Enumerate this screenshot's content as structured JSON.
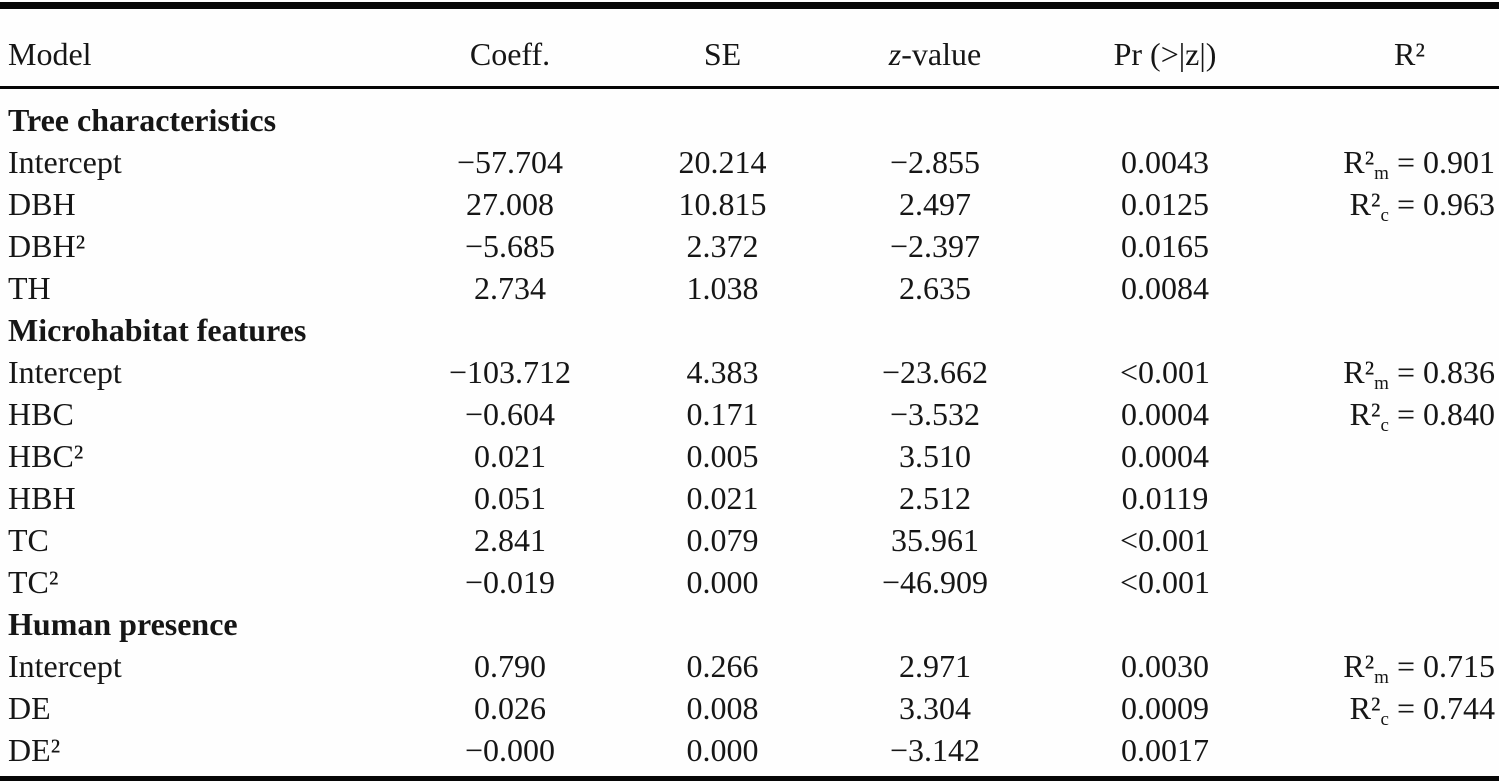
{
  "colors": {
    "text": "#161616",
    "rule": "#060606",
    "background": "#fefefe"
  },
  "table": {
    "headers": {
      "model": "Model",
      "coeff": "Coeff.",
      "se": "SE",
      "z_italic": "z",
      "z_rest": "-value",
      "pr": "Pr (>|z|)",
      "r2": "R²"
    },
    "rows": [
      {
        "type": "section",
        "label": "Tree characteristics"
      },
      {
        "type": "data",
        "model": "Intercept",
        "coeff": "−57.704",
        "se": "20.214",
        "z": "−2.855",
        "p": "0.0043",
        "r2": {
          "base": "R²",
          "sub": "m",
          "rest": " = 0.901"
        }
      },
      {
        "type": "data",
        "model": "DBH",
        "coeff": "27.008",
        "se": "10.815",
        "z": "2.497",
        "p": "0.0125",
        "r2": {
          "base": "R²",
          "sub": "c",
          "rest": " = 0.963"
        }
      },
      {
        "type": "data",
        "model": "DBH²",
        "coeff": "−5.685",
        "se": "2.372",
        "z": "−2.397",
        "p": "0.0165",
        "r2": null
      },
      {
        "type": "data",
        "model": "TH",
        "coeff": "2.734",
        "se": "1.038",
        "z": "2.635",
        "p": "0.0084",
        "r2": null
      },
      {
        "type": "section",
        "label": "Microhabitat features"
      },
      {
        "type": "data",
        "model": "Intercept",
        "coeff": "−103.712",
        "se": "4.383",
        "z": "−23.662",
        "p": "<0.001",
        "r2": {
          "base": "R²",
          "sub": "m",
          "rest": " = 0.836"
        }
      },
      {
        "type": "data",
        "model": "HBC",
        "coeff": "−0.604",
        "se": "0.171",
        "z": "−3.532",
        "p": "0.0004",
        "r2": {
          "base": "R²",
          "sub": "c",
          "rest": " = 0.840"
        }
      },
      {
        "type": "data",
        "model": "HBC²",
        "coeff": "0.021",
        "se": "0.005",
        "z": "3.510",
        "p": "0.0004",
        "r2": null
      },
      {
        "type": "data",
        "model": "HBH",
        "coeff": "0.051",
        "se": "0.021",
        "z": "2.512",
        "p": "0.0119",
        "r2": null
      },
      {
        "type": "data",
        "model": "TC",
        "coeff": "2.841",
        "se": "0.079",
        "z": "35.961",
        "p": "<0.001",
        "r2": null
      },
      {
        "type": "data",
        "model": "TC²",
        "coeff": "−0.019",
        "se": "0.000",
        "z": "−46.909",
        "p": "<0.001",
        "r2": null
      },
      {
        "type": "section",
        "label": "Human presence"
      },
      {
        "type": "data",
        "model": "Intercept",
        "coeff": "0.790",
        "se": "0.266",
        "z": "2.971",
        "p": "0.0030",
        "r2": {
          "base": "R²",
          "sub": "m",
          "rest": " = 0.715"
        }
      },
      {
        "type": "data",
        "model": "DE",
        "coeff": "0.026",
        "se": "0.008",
        "z": "3.304",
        "p": "0.0009",
        "r2": {
          "base": "R²",
          "sub": "c",
          "rest": " = 0.744"
        }
      },
      {
        "type": "data",
        "model": "DE²",
        "coeff": "−0.000",
        "se": "0.000",
        "z": "−3.142",
        "p": "0.0017",
        "r2": null
      }
    ]
  }
}
